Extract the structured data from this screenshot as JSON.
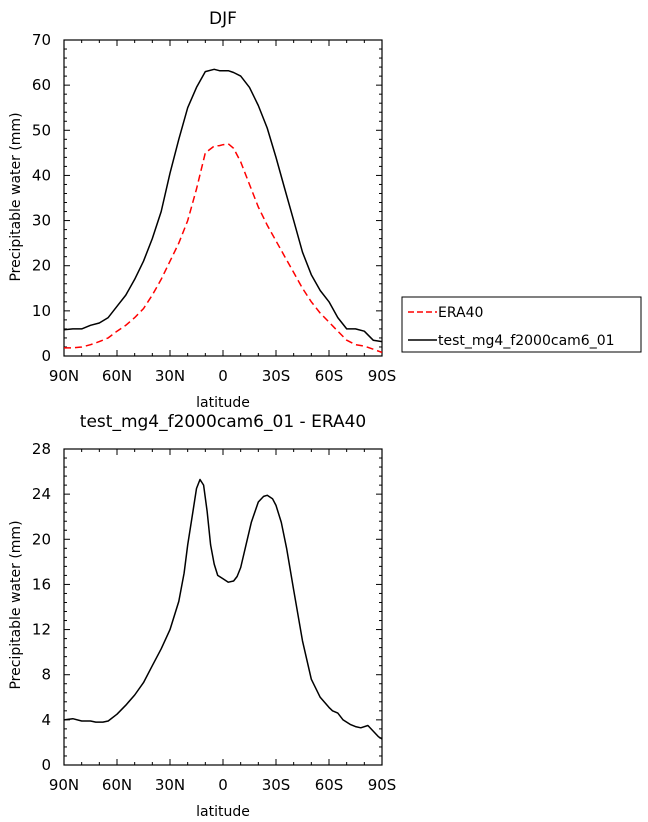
{
  "chart_data": [
    {
      "type": "line",
      "title": "DJF",
      "xlabel": "latitude",
      "ylabel": "Precipitable water (mm)",
      "xlim": [
        -90,
        90
      ],
      "ylim": [
        0,
        70
      ],
      "x_tick_values": [
        -90,
        -60,
        -30,
        0,
        30,
        60,
        90
      ],
      "x_tick_labels": [
        "90N",
        "60N",
        "30N",
        "0",
        "30S",
        "60S",
        "90S"
      ],
      "y_ticks": [
        0,
        10,
        20,
        30,
        40,
        50,
        60,
        70
      ],
      "legend_position": "right",
      "series": [
        {
          "name": "ERA40",
          "color": "#ff0000",
          "style": "dashed",
          "x": [
            -90,
            -85,
            -80,
            -75,
            -70,
            -65,
            -60,
            -55,
            -50,
            -45,
            -40,
            -35,
            -30,
            -25,
            -20,
            -15,
            -10,
            -5,
            -2,
            0,
            3,
            6,
            10,
            15,
            20,
            25,
            30,
            35,
            40,
            45,
            50,
            55,
            60,
            65,
            70,
            75,
            80,
            85,
            90
          ],
          "y": [
            1.8,
            1.8,
            2.0,
            2.5,
            3.2,
            4.0,
            5.5,
            6.8,
            8.5,
            10.5,
            13.5,
            17.0,
            21.0,
            25.0,
            30.0,
            37.0,
            45.0,
            46.5,
            46.6,
            46.8,
            47.0,
            46.0,
            43.0,
            38.0,
            33.0,
            29.0,
            25.5,
            22.0,
            18.5,
            15.0,
            12.0,
            9.5,
            7.5,
            5.5,
            3.5,
            2.5,
            2.2,
            1.5,
            0.8
          ]
        },
        {
          "name": "test_mg4_f2000cam6_01",
          "color": "#000000",
          "style": "solid",
          "x": [
            -90,
            -85,
            -80,
            -75,
            -70,
            -65,
            -60,
            -55,
            -50,
            -45,
            -40,
            -35,
            -30,
            -25,
            -20,
            -15,
            -10,
            -5,
            -2,
            0,
            3,
            6,
            10,
            15,
            20,
            25,
            30,
            35,
            40,
            45,
            50,
            55,
            60,
            65,
            70,
            75,
            80,
            85,
            90
          ],
          "y": [
            5.8,
            6.0,
            6.0,
            6.8,
            7.3,
            8.5,
            11.0,
            13.5,
            17.0,
            21.0,
            26.0,
            32.0,
            40.5,
            48.0,
            55.0,
            59.5,
            63.0,
            63.5,
            63.2,
            63.2,
            63.2,
            62.8,
            62.0,
            59.5,
            55.5,
            50.5,
            44.0,
            37.0,
            30.0,
            23.0,
            18.0,
            14.5,
            12.0,
            8.5,
            6.0,
            6.0,
            5.5,
            3.5,
            3.2
          ]
        }
      ]
    },
    {
      "type": "line",
      "title": "test_mg4_f2000cam6_01 - ERA40",
      "xlabel": "latitude",
      "ylabel": "Precipitable water (mm)",
      "xlim": [
        -90,
        90
      ],
      "ylim": [
        0,
        28
      ],
      "x_tick_values": [
        -90,
        -60,
        -30,
        0,
        30,
        60,
        90
      ],
      "x_tick_labels": [
        "90N",
        "60N",
        "30N",
        "0",
        "30S",
        "60S",
        "90S"
      ],
      "y_ticks": [
        0,
        4,
        8,
        12,
        16,
        20,
        24,
        28
      ],
      "series": [
        {
          "color": "#000000",
          "style": "solid",
          "x": [
            -90,
            -85,
            -80,
            -75,
            -72,
            -68,
            -65,
            -60,
            -55,
            -50,
            -45,
            -40,
            -35,
            -30,
            -25,
            -22,
            -20,
            -17,
            -15,
            -13,
            -11,
            -9,
            -7,
            -5,
            -3,
            0,
            3,
            6,
            8,
            10,
            13,
            16,
            20,
            23,
            25,
            28,
            30,
            33,
            36,
            40,
            45,
            50,
            55,
            60,
            62,
            65,
            68,
            72,
            75,
            78,
            82,
            85,
            88,
            90
          ],
          "y": [
            4.0,
            4.1,
            3.9,
            3.9,
            3.8,
            3.8,
            3.9,
            4.5,
            5.3,
            6.2,
            7.3,
            8.8,
            10.3,
            12.0,
            14.5,
            17.0,
            19.5,
            22.5,
            24.5,
            25.3,
            24.8,
            22.5,
            19.5,
            17.8,
            16.8,
            16.5,
            16.2,
            16.3,
            16.7,
            17.5,
            19.5,
            21.5,
            23.3,
            23.8,
            23.9,
            23.6,
            23.0,
            21.5,
            19.2,
            15.5,
            11.0,
            7.6,
            6.0,
            5.1,
            4.8,
            4.6,
            4.0,
            3.6,
            3.4,
            3.3,
            3.5,
            3.0,
            2.5,
            2.3
          ]
        }
      ]
    }
  ]
}
